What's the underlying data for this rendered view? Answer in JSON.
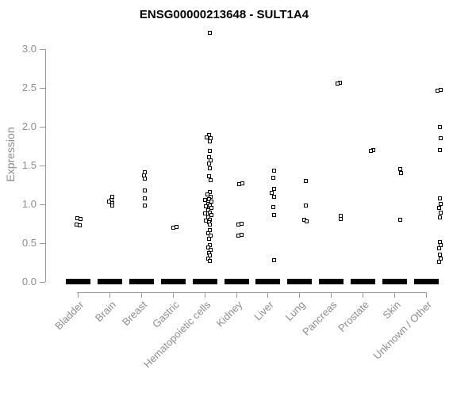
{
  "title": "ENSG00000213648 - SULT1A4",
  "colors": {
    "title_text": "#000000",
    "axis_text": "#8c8c8c",
    "axis_line": "#999999",
    "marker": "#000000",
    "background": "#ffffff"
  },
  "chart_data": {
    "type": "scatter",
    "subtype": "jittered strip plot, open square markers, dense mass of zero values drawn as thick black bar per category",
    "title": "ENSG00000213648 - SULT1A4",
    "xlabel": "",
    "ylabel": "Expression",
    "ylim": [
      0.0,
      3.3
    ],
    "yticks": [
      0.0,
      0.5,
      1.0,
      1.5,
      2.0,
      2.5,
      3.0
    ],
    "grid": "off",
    "legend": "none",
    "categories": [
      "Bladder",
      "Brain",
      "Breast",
      "Gastric",
      "Hematopoietic cells",
      "Kidney",
      "Liver",
      "Lung",
      "Pancreas",
      "Prostate",
      "Skin",
      "Unknown / Other"
    ],
    "series": [
      {
        "name": "Bladder",
        "zero_mass": true,
        "points": [
          [
            0.82,
            -1
          ],
          [
            0.81,
            3
          ],
          [
            0.74,
            -2
          ],
          [
            0.73,
            2
          ]
        ]
      },
      {
        "name": "Brain",
        "zero_mass": true,
        "points": [
          [
            1.1,
            3
          ],
          [
            1.06,
            2
          ],
          [
            1.04,
            -1
          ],
          [
            1.02,
            3
          ],
          [
            0.98,
            3
          ]
        ]
      },
      {
        "name": "Breast",
        "zero_mass": true,
        "points": [
          [
            1.41,
            4
          ],
          [
            1.37,
            3
          ],
          [
            1.33,
            4
          ],
          [
            1.18,
            4
          ],
          [
            1.08,
            4
          ],
          [
            0.98,
            4
          ]
        ]
      },
      {
        "name": "Gastric",
        "zero_mass": true,
        "points": [
          [
            0.71,
            4
          ],
          [
            0.7,
            0
          ]
        ]
      },
      {
        "name": "Hematopoietic cells",
        "zero_mass": true,
        "points": [
          [
            3.21,
            6
          ],
          [
            1.89,
            5
          ],
          [
            1.86,
            2
          ],
          [
            1.85,
            7
          ],
          [
            1.81,
            6
          ],
          [
            1.69,
            6
          ],
          [
            1.61,
            5
          ],
          [
            1.57,
            7
          ],
          [
            1.53,
            5
          ],
          [
            1.46,
            6
          ],
          [
            1.36,
            5
          ],
          [
            1.31,
            7
          ],
          [
            1.16,
            6
          ],
          [
            1.13,
            3
          ],
          [
            1.1,
            7
          ],
          [
            1.07,
            5
          ],
          [
            1.06,
            0
          ],
          [
            1.04,
            8
          ],
          [
            1.01,
            4
          ],
          [
            0.98,
            6
          ],
          [
            0.97,
            1
          ],
          [
            0.95,
            8
          ],
          [
            0.92,
            4
          ],
          [
            0.89,
            6
          ],
          [
            0.88,
            0
          ],
          [
            0.86,
            8
          ],
          [
            0.83,
            4
          ],
          [
            0.8,
            6
          ],
          [
            0.79,
            1
          ],
          [
            0.77,
            5
          ],
          [
            0.74,
            6
          ],
          [
            0.67,
            6
          ],
          [
            0.63,
            4
          ],
          [
            0.6,
            7
          ],
          [
            0.56,
            5
          ],
          [
            0.47,
            6
          ],
          [
            0.44,
            4
          ],
          [
            0.41,
            7
          ],
          [
            0.37,
            5
          ],
          [
            0.34,
            6
          ],
          [
            0.3,
            4
          ],
          [
            0.27,
            6
          ]
        ]
      },
      {
        "name": "Kidney",
        "zero_mass": true,
        "points": [
          [
            1.27,
            7
          ],
          [
            1.26,
            3
          ],
          [
            0.75,
            6
          ],
          [
            0.74,
            2
          ],
          [
            0.61,
            6
          ],
          [
            0.6,
            2
          ]
        ]
      },
      {
        "name": "Liver",
        "zero_mass": true,
        "points": [
          [
            1.43,
            8
          ],
          [
            1.34,
            7
          ],
          [
            1.2,
            8
          ],
          [
            1.15,
            5
          ],
          [
            1.1,
            8
          ],
          [
            0.96,
            7
          ],
          [
            0.86,
            8
          ],
          [
            0.28,
            8
          ]
        ]
      },
      {
        "name": "Lung",
        "zero_mass": true,
        "points": [
          [
            1.3,
            8
          ],
          [
            0.98,
            8
          ],
          [
            0.8,
            6
          ],
          [
            0.78,
            9
          ]
        ]
      },
      {
        "name": "Pancreas",
        "zero_mass": true,
        "points": [
          [
            2.57,
            11
          ],
          [
            2.56,
            8
          ],
          [
            0.85,
            12
          ],
          [
            0.81,
            12
          ]
        ]
      },
      {
        "name": "Prostate",
        "zero_mass": true,
        "points": [
          [
            1.7,
            13
          ],
          [
            1.69,
            10
          ]
        ]
      },
      {
        "name": "Skin",
        "zero_mass": true,
        "points": [
          [
            1.45,
            7
          ],
          [
            1.4,
            8
          ],
          [
            0.8,
            7
          ]
        ]
      },
      {
        "name": "Unknown / Other",
        "zero_mass": true,
        "points": [
          [
            2.47,
            18
          ],
          [
            2.46,
            14
          ],
          [
            2.0,
            17
          ],
          [
            1.85,
            18
          ],
          [
            1.7,
            17
          ],
          [
            1.08,
            17
          ],
          [
            1.01,
            18
          ],
          [
            0.95,
            16
          ],
          [
            0.89,
            18
          ],
          [
            0.83,
            17
          ],
          [
            0.52,
            17
          ],
          [
            0.47,
            18
          ],
          [
            0.43,
            16
          ],
          [
            0.35,
            17
          ],
          [
            0.3,
            18
          ],
          [
            0.26,
            16
          ]
        ]
      }
    ]
  }
}
